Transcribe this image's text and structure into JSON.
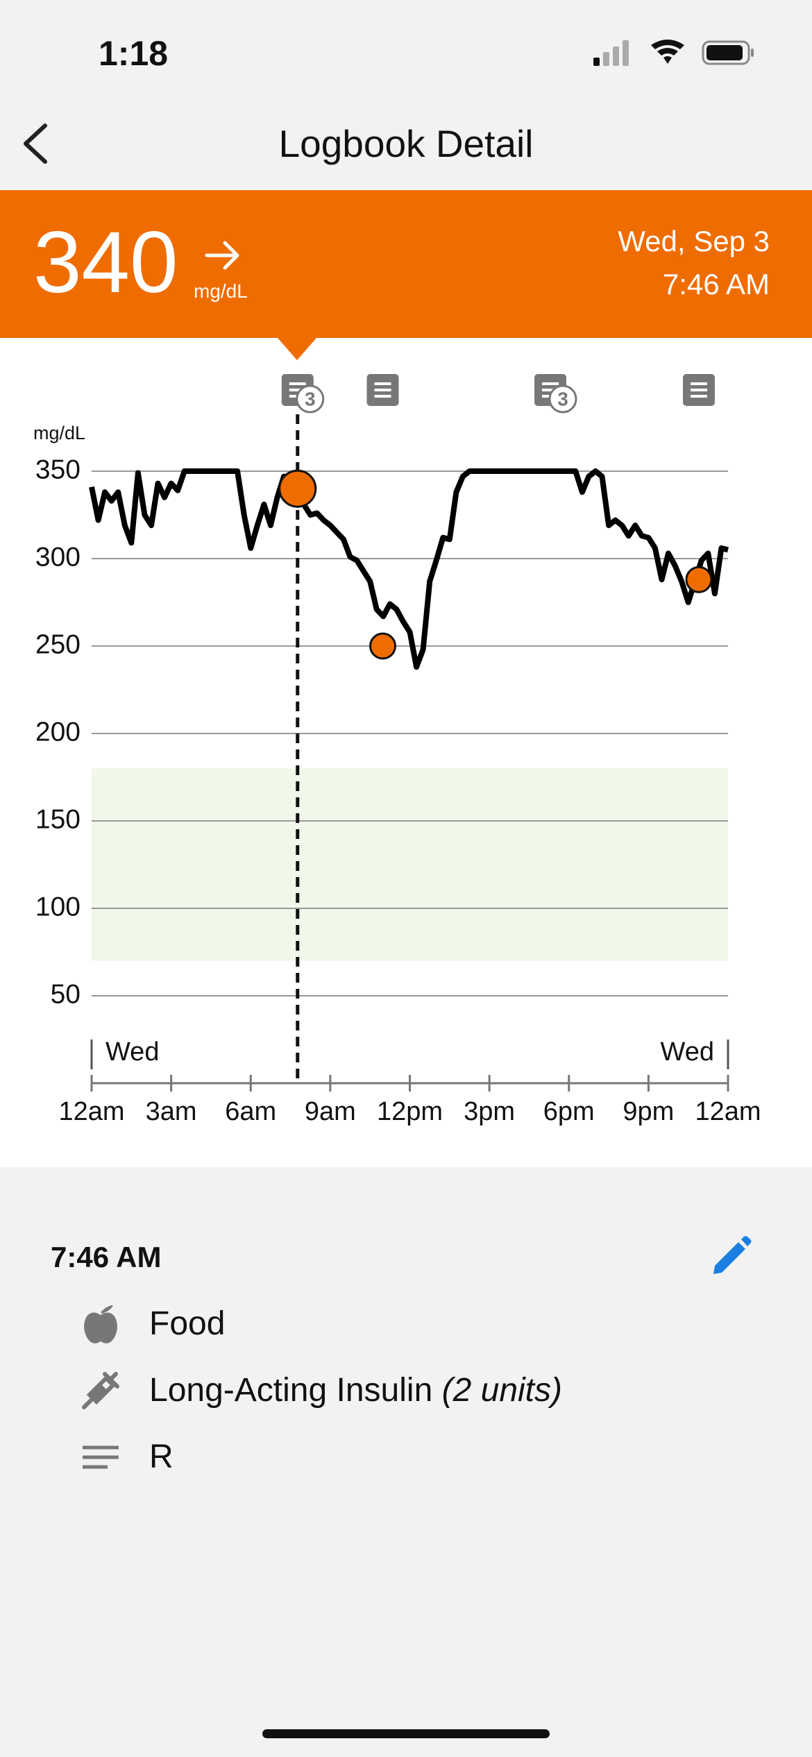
{
  "status_bar": {
    "time": "1:18"
  },
  "nav": {
    "title": "Logbook Detail"
  },
  "reading": {
    "value": 340,
    "unit": "mg/dL",
    "date": "Wed, Sep 3",
    "time": "7:46 AM"
  },
  "chart_data": {
    "type": "line",
    "y_label": "mg/dL",
    "color": "#000000",
    "marker_color": "#ef6c00",
    "band_color": "#f1f7e9",
    "grid": true,
    "xlim": [
      0,
      24
    ],
    "xticks": [
      {
        "value": 0,
        "label": "12am"
      },
      {
        "value": 3,
        "label": "3am"
      },
      {
        "value": 6,
        "label": "6am"
      },
      {
        "value": 9,
        "label": "9am"
      },
      {
        "value": 12,
        "label": "12pm"
      },
      {
        "value": 15,
        "label": "3pm"
      },
      {
        "value": 18,
        "label": "6pm"
      },
      {
        "value": 21,
        "label": "9pm"
      },
      {
        "value": 24,
        "label": "12am"
      }
    ],
    "ylim": [
      0,
      350
    ],
    "yticks": [
      50,
      100,
      150,
      200,
      250,
      300,
      350
    ],
    "day_labels": [
      "Wed",
      "Wed"
    ],
    "target_range": [
      70,
      180
    ],
    "x": [
      0,
      0.25,
      0.5,
      0.75,
      1,
      1.25,
      1.5,
      1.75,
      2,
      2.25,
      2.5,
      2.75,
      3,
      3.25,
      3.5,
      3.75,
      4,
      4.25,
      4.5,
      4.75,
      5,
      5.25,
      5.5,
      5.75,
      6,
      6.25,
      6.5,
      6.75,
      7,
      7.25,
      7.5,
      7.75,
      8,
      8.25,
      8.5,
      8.75,
      9,
      9.25,
      9.5,
      9.75,
      10,
      10.25,
      10.5,
      10.75,
      11,
      11.25,
      11.5,
      11.75,
      12,
      12.25,
      12.5,
      12.75,
      13,
      13.25,
      13.5,
      13.75,
      14,
      14.25,
      14.5,
      14.75,
      15,
      15.25,
      15.5,
      15.75,
      16,
      16.25,
      16.5,
      16.75,
      17,
      17.25,
      17.5,
      17.75,
      18,
      18.25,
      18.5,
      18.75,
      19,
      19.25,
      19.5,
      19.75,
      20,
      20.25,
      20.5,
      20.75,
      21,
      21.25,
      21.5,
      21.75,
      22,
      22.25,
      22.5,
      22.75,
      23,
      23.25,
      23.5,
      23.75,
      24
    ],
    "values": [
      341,
      322,
      338,
      333,
      338,
      319,
      309,
      349,
      325,
      319,
      343,
      335,
      343,
      339,
      350,
      350,
      350,
      350,
      350,
      350,
      350,
      350,
      350,
      325,
      306,
      319,
      331,
      319,
      335,
      347,
      344,
      340,
      331,
      325,
      326,
      322,
      319,
      315,
      311,
      301,
      299,
      293,
      287,
      271,
      267,
      274,
      271,
      264,
      258,
      238,
      248,
      287,
      299,
      312,
      311,
      338,
      347,
      350,
      350,
      350,
      350,
      350,
      350,
      350,
      350,
      350,
      350,
      350,
      350,
      350,
      350,
      350,
      350,
      350,
      338,
      347,
      350,
      347,
      319,
      322,
      319,
      313,
      319,
      313,
      312,
      306,
      288,
      303,
      296,
      287,
      275,
      287,
      299,
      303,
      280,
      306,
      305
    ],
    "cursor": {
      "x": 7.767,
      "value": 340
    },
    "readings": {
      "x": [
        10.98,
        22.9
      ],
      "values": [
        250,
        288
      ]
    },
    "notes": {
      "x": [
        7.767,
        10.98,
        17.3,
        22.9
      ],
      "badges": [
        3,
        null,
        3,
        null
      ]
    }
  },
  "entry": {
    "time": "7:46 AM",
    "items": [
      {
        "label": "Food"
      },
      {
        "label": "Long-Acting Insulin",
        "detail": "(2 units)"
      },
      {
        "label": "R"
      }
    ]
  }
}
